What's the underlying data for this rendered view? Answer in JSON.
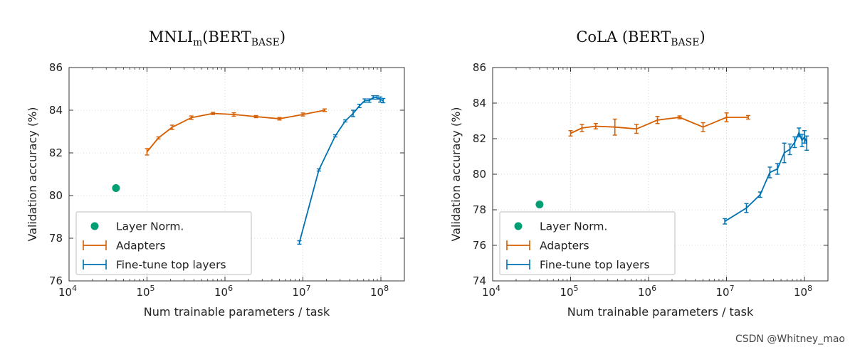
{
  "watermark": "CSDN @Whitney_mao",
  "colors": {
    "layer_norm": "#009E73",
    "adapters": "#D55E00",
    "fine_tune": "#0072B2"
  },
  "chart_data": [
    {
      "type": "line",
      "title_main": "MNLI",
      "title_sub": "m",
      "title_mid": "(BERT",
      "title_sub2": "BASE",
      "title_end": ")",
      "xlabel": "Num trainable parameters / task",
      "ylabel": "Validation accuracy (%)",
      "xscale": "log",
      "xlim": [
        10000,
        200000000
      ],
      "ylim": [
        76,
        86
      ],
      "yticks": [
        76,
        78,
        80,
        82,
        84,
        86
      ],
      "xticks": [
        {
          "value": 10000,
          "base": "10",
          "exp": "4"
        },
        {
          "value": 100000,
          "base": "10",
          "exp": "5"
        },
        {
          "value": 1000000,
          "base": "10",
          "exp": "6"
        },
        {
          "value": 10000000,
          "base": "10",
          "exp": "7"
        },
        {
          "value": 100000000,
          "base": "10",
          "exp": "8"
        }
      ],
      "legend_position": "lower-left",
      "series": [
        {
          "name": "Layer Norm.",
          "key": "layer_norm",
          "style": "marker",
          "points": [
            {
              "x": 40000,
              "y": 80.35,
              "err": 0
            }
          ]
        },
        {
          "name": "Adapters",
          "key": "adapters",
          "style": "errorbar",
          "points": [
            {
              "x": 100000,
              "y": 82.05,
              "err": 0.15
            },
            {
              "x": 140000,
              "y": 82.7,
              "err": 0.05
            },
            {
              "x": 210000,
              "y": 83.2,
              "err": 0.1
            },
            {
              "x": 370000,
              "y": 83.65,
              "err": 0.08
            },
            {
              "x": 700000,
              "y": 83.85,
              "err": 0.05
            },
            {
              "x": 1300000,
              "y": 83.8,
              "err": 0.08
            },
            {
              "x": 2500000,
              "y": 83.7,
              "err": 0.05
            },
            {
              "x": 5000000,
              "y": 83.6,
              "err": 0.06
            },
            {
              "x": 10000000,
              "y": 83.8,
              "err": 0.07
            },
            {
              "x": 19000000,
              "y": 84.0,
              "err": 0.06
            }
          ]
        },
        {
          "name": "Fine-tune top layers",
          "key": "fine_tune",
          "style": "errorbar",
          "points": [
            {
              "x": 9000000,
              "y": 77.8,
              "err": 0.08
            },
            {
              "x": 16000000,
              "y": 81.2,
              "err": 0.05
            },
            {
              "x": 26000000,
              "y": 82.8,
              "err": 0.05
            },
            {
              "x": 35000000,
              "y": 83.5,
              "err": 0.05
            },
            {
              "x": 44000000,
              "y": 83.85,
              "err": 0.15
            },
            {
              "x": 53000000,
              "y": 84.2,
              "err": 0.08
            },
            {
              "x": 62000000,
              "y": 84.45,
              "err": 0.08
            },
            {
              "x": 71000000,
              "y": 84.45,
              "err": 0.08
            },
            {
              "x": 80000000,
              "y": 84.6,
              "err": 0.08
            },
            {
              "x": 89000000,
              "y": 84.6,
              "err": 0.08
            },
            {
              "x": 98000000,
              "y": 84.5,
              "err": 0.12
            },
            {
              "x": 107000000,
              "y": 84.45,
              "err": 0.1
            }
          ]
        }
      ]
    },
    {
      "type": "line",
      "title_main": "CoLA",
      "title_sub": "",
      "title_mid": " (BERT",
      "title_sub2": "BASE",
      "title_end": ")",
      "xlabel": "Num trainable parameters / task",
      "ylabel": "Validation accuracy (%)",
      "xscale": "log",
      "xlim": [
        10000,
        200000000
      ],
      "ylim": [
        74,
        86
      ],
      "yticks": [
        74,
        76,
        78,
        80,
        82,
        84,
        86
      ],
      "xticks": [
        {
          "value": 10000,
          "base": "10",
          "exp": "4"
        },
        {
          "value": 100000,
          "base": "10",
          "exp": "5"
        },
        {
          "value": 1000000,
          "base": "10",
          "exp": "6"
        },
        {
          "value": 10000000,
          "base": "10",
          "exp": "7"
        },
        {
          "value": 100000000,
          "base": "10",
          "exp": "8"
        }
      ],
      "legend_position": "lower-left",
      "series": [
        {
          "name": "Layer Norm.",
          "key": "layer_norm",
          "style": "marker",
          "points": [
            {
              "x": 40000,
              "y": 78.3,
              "err": 0
            }
          ]
        },
        {
          "name": "Adapters",
          "key": "adapters",
          "style": "errorbar",
          "points": [
            {
              "x": 100000,
              "y": 82.3,
              "err": 0.15
            },
            {
              "x": 140000,
              "y": 82.6,
              "err": 0.2
            },
            {
              "x": 210000,
              "y": 82.7,
              "err": 0.15
            },
            {
              "x": 370000,
              "y": 82.65,
              "err": 0.45
            },
            {
              "x": 700000,
              "y": 82.55,
              "err": 0.25
            },
            {
              "x": 1300000,
              "y": 83.05,
              "err": 0.2
            },
            {
              "x": 2500000,
              "y": 83.2,
              "err": 0.08
            },
            {
              "x": 5000000,
              "y": 82.65,
              "err": 0.25
            },
            {
              "x": 10000000,
              "y": 83.2,
              "err": 0.25
            },
            {
              "x": 19000000,
              "y": 83.2,
              "err": 0.1
            }
          ]
        },
        {
          "name": "Fine-tune top layers",
          "key": "fine_tune",
          "style": "errorbar",
          "points": [
            {
              "x": 9500000,
              "y": 77.35,
              "err": 0.15
            },
            {
              "x": 18000000,
              "y": 78.1,
              "err": 0.25
            },
            {
              "x": 27000000,
              "y": 78.85,
              "err": 0.15
            },
            {
              "x": 36000000,
              "y": 80.1,
              "err": 0.3
            },
            {
              "x": 45000000,
              "y": 80.3,
              "err": 0.3
            },
            {
              "x": 55000000,
              "y": 81.2,
              "err": 0.55
            },
            {
              "x": 65000000,
              "y": 81.4,
              "err": 0.3
            },
            {
              "x": 75000000,
              "y": 81.8,
              "err": 0.3
            },
            {
              "x": 85000000,
              "y": 82.35,
              "err": 0.25
            },
            {
              "x": 93000000,
              "y": 81.9,
              "err": 0.35
            },
            {
              "x": 100000000,
              "y": 82.1,
              "err": 0.35
            },
            {
              "x": 107000000,
              "y": 81.75,
              "err": 0.4
            }
          ]
        }
      ]
    }
  ]
}
